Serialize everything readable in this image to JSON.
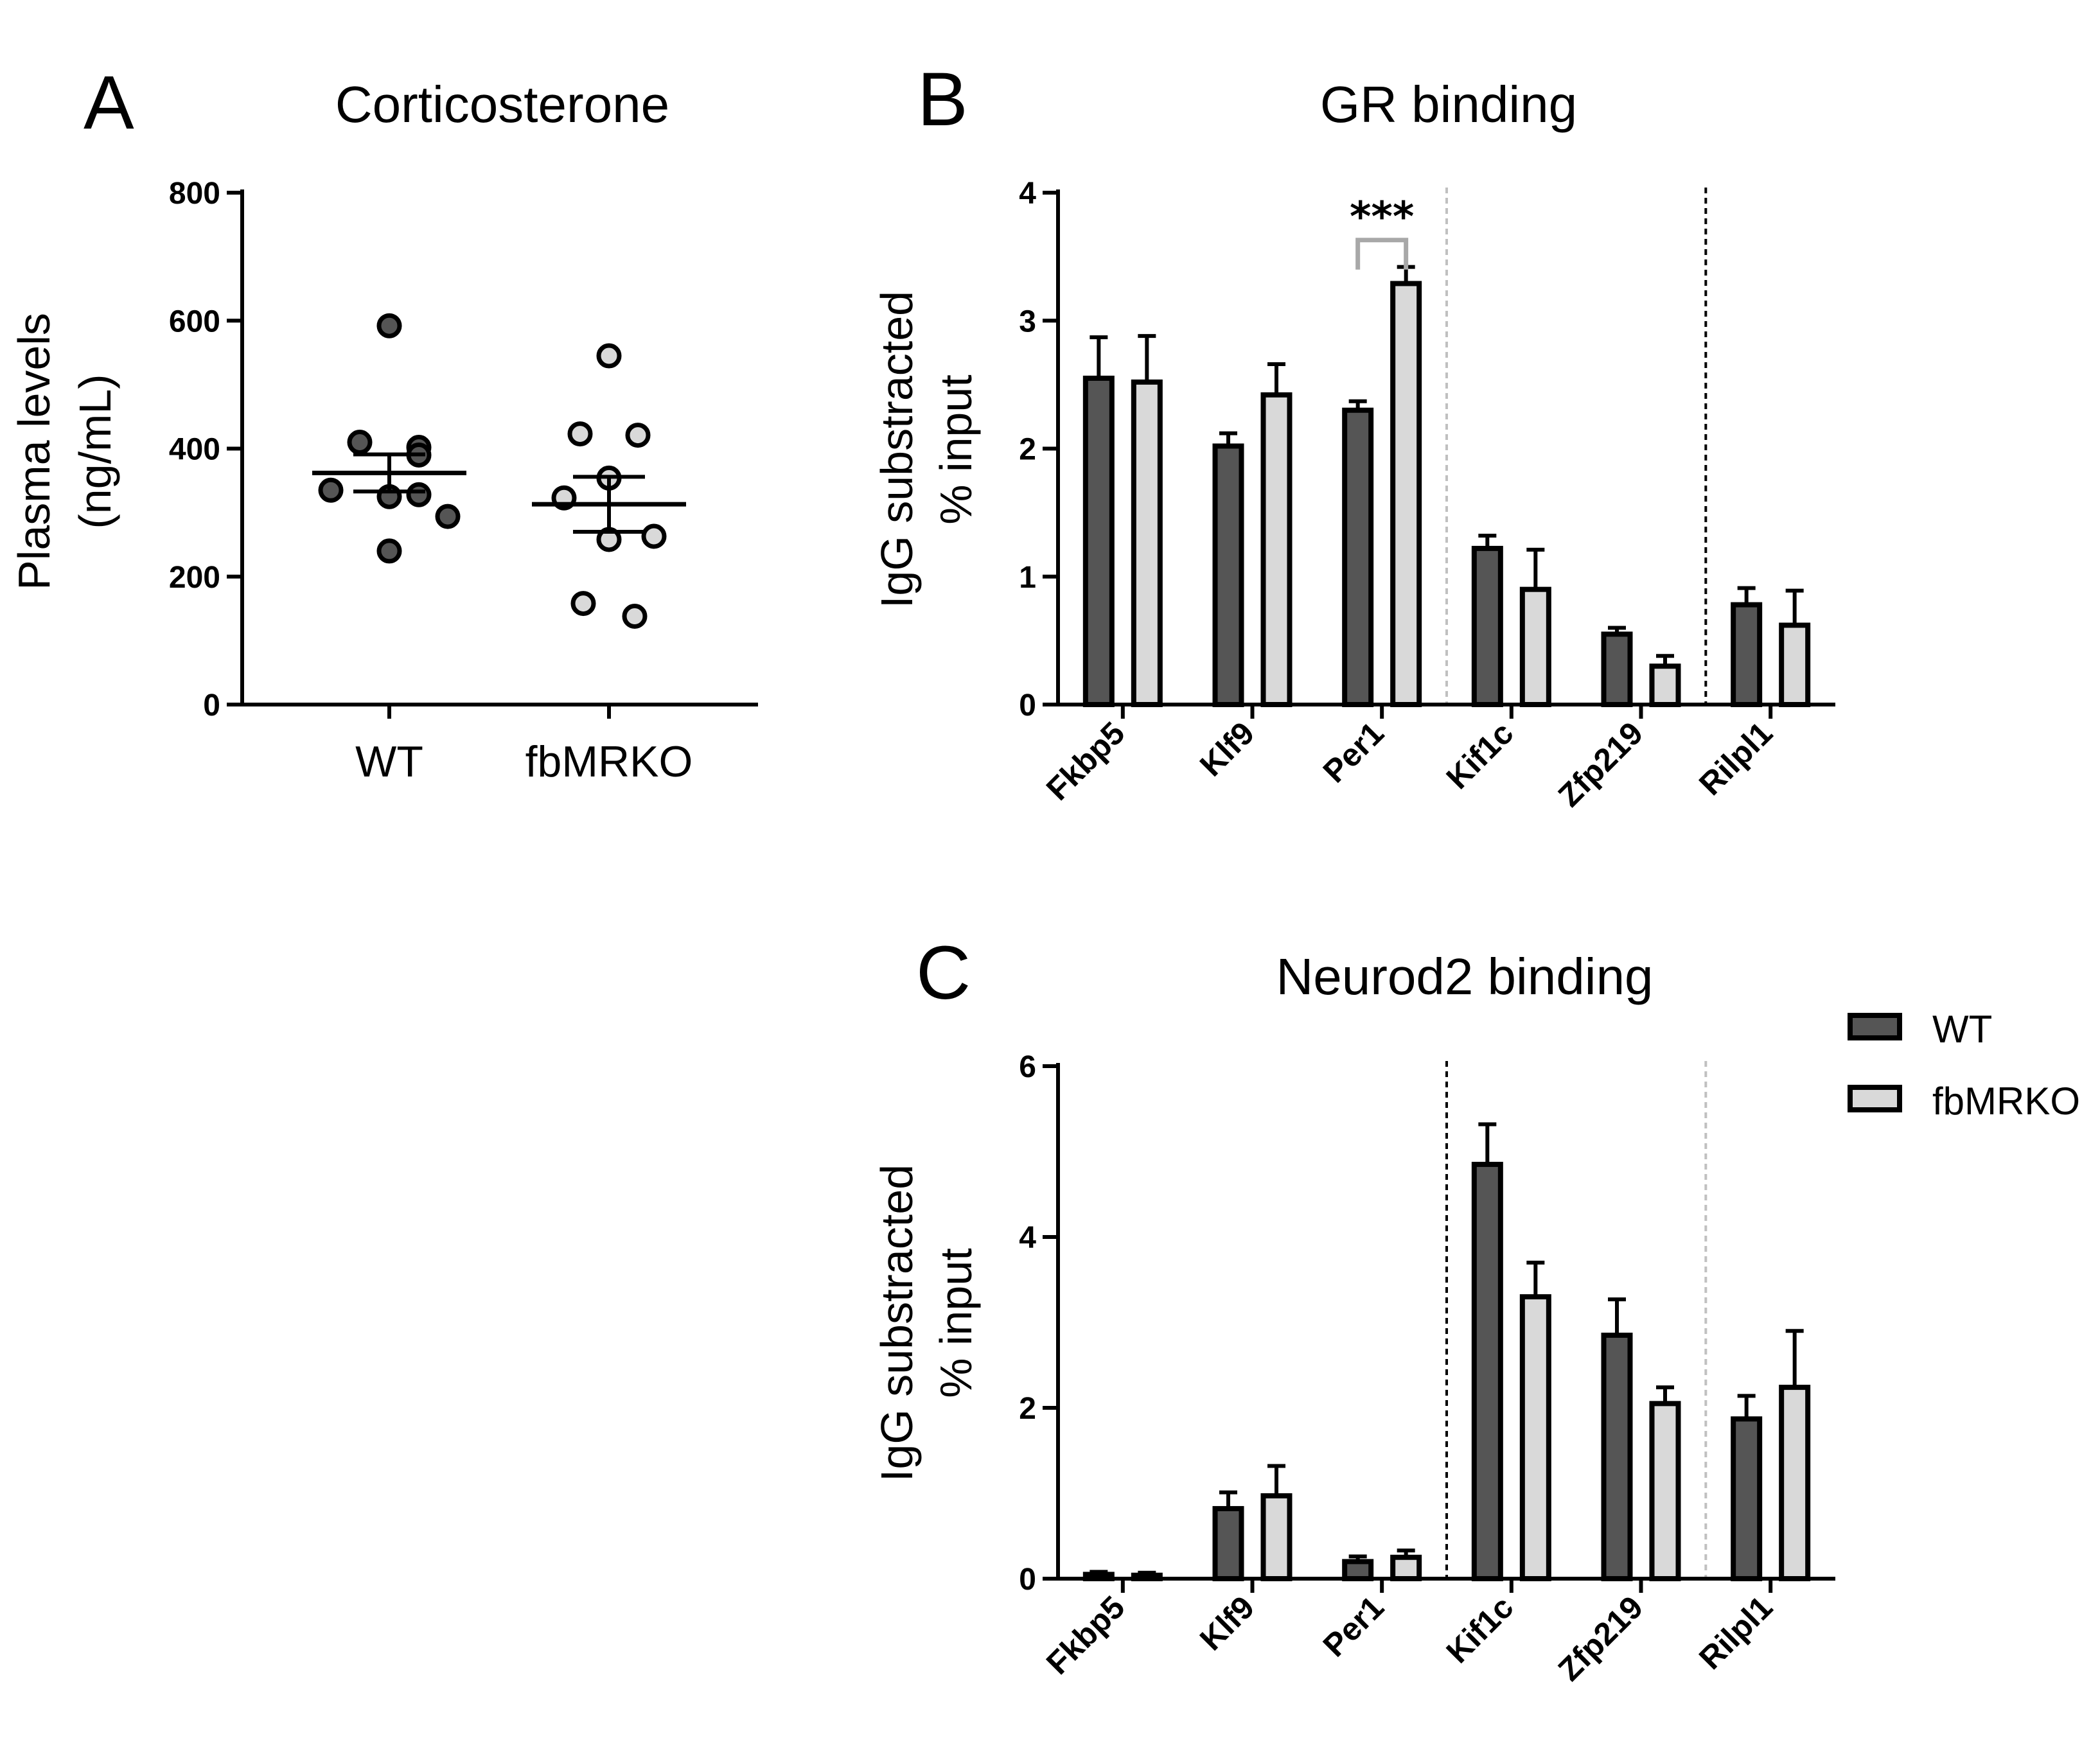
{
  "colors": {
    "wt": "#555555",
    "ko": "#d9d9d9",
    "axis": "#000000",
    "separator_light": "#c0c0c0",
    "separator_dark": "#000000",
    "bracket": "#a8a8a8"
  },
  "legend": {
    "wt": "WT",
    "ko": "fbMRKO"
  },
  "chart_data": [
    {
      "panel": "A",
      "type": "scatter",
      "title": "Corticosterone",
      "ylabel_line1": "Plasma levels",
      "ylabel_line2": "(ng/mL)",
      "ylim": [
        0,
        800
      ],
      "yticks": [
        "800",
        "600",
        "400",
        "200",
        "0"
      ],
      "categories": [
        "WT",
        "fbMRKO"
      ],
      "groups": [
        {
          "name": "WT",
          "points": [
            592,
            410,
            402,
            390,
            335,
            328,
            325,
            294,
            240
          ],
          "mean": 362,
          "sem_low": 333,
          "sem_high": 391
        },
        {
          "name": "fbMRKO",
          "points": [
            545,
            423,
            421,
            354,
            323,
            263,
            258,
            158,
            138
          ],
          "mean": 313,
          "sem_low": 270,
          "sem_high": 356
        }
      ]
    },
    {
      "panel": "B",
      "type": "bar",
      "title": "GR binding",
      "ylabel_line1": "IgG substracted",
      "ylabel_line2": "% input",
      "ylim": [
        0,
        4
      ],
      "yticks": [
        "4",
        "3",
        "2",
        "1",
        "0"
      ],
      "categories": [
        "Fkbp5",
        "Klf9",
        "Per1",
        "Kif1c",
        "Zfp219",
        "Rilpl1"
      ],
      "series": [
        {
          "name": "WT",
          "values": [
            2.55,
            2.02,
            2.3,
            1.22,
            0.55,
            0.78
          ],
          "errors": [
            0.32,
            0.1,
            0.07,
            0.1,
            0.05,
            0.13
          ]
        },
        {
          "name": "fbMRKO",
          "values": [
            2.52,
            2.42,
            3.29,
            0.9,
            0.3,
            0.62
          ],
          "errors": [
            0.36,
            0.24,
            0.13,
            0.31,
            0.08,
            0.27
          ]
        }
      ],
      "separators": [
        {
          "after_index": 2,
          "style": "light"
        },
        {
          "after_index": 4,
          "style": "dark"
        }
      ],
      "significance": {
        "category_index": 2,
        "label": "***"
      }
    },
    {
      "panel": "C",
      "type": "bar",
      "title": "Neurod2 binding",
      "ylabel_line1": "IgG substracted",
      "ylabel_line2": "% input",
      "ylim": [
        0,
        6
      ],
      "yticks": [
        "6",
        "4",
        "2",
        "0"
      ],
      "categories": [
        "Fkbp5",
        "Klf9",
        "Per1",
        "Kif1c",
        "Zfp219",
        "Rilpl1"
      ],
      "series": [
        {
          "name": "WT",
          "values": [
            0.05,
            0.82,
            0.2,
            4.85,
            2.85,
            1.87
          ],
          "errors": [
            0.03,
            0.19,
            0.06,
            0.47,
            0.42,
            0.27
          ]
        },
        {
          "name": "fbMRKO",
          "values": [
            0.04,
            0.97,
            0.25,
            3.3,
            2.05,
            2.24
          ],
          "errors": [
            0.03,
            0.35,
            0.08,
            0.4,
            0.19,
            0.66
          ]
        }
      ],
      "separators": [
        {
          "after_index": 2,
          "style": "dark"
        },
        {
          "after_index": 4,
          "style": "light"
        }
      ]
    }
  ]
}
